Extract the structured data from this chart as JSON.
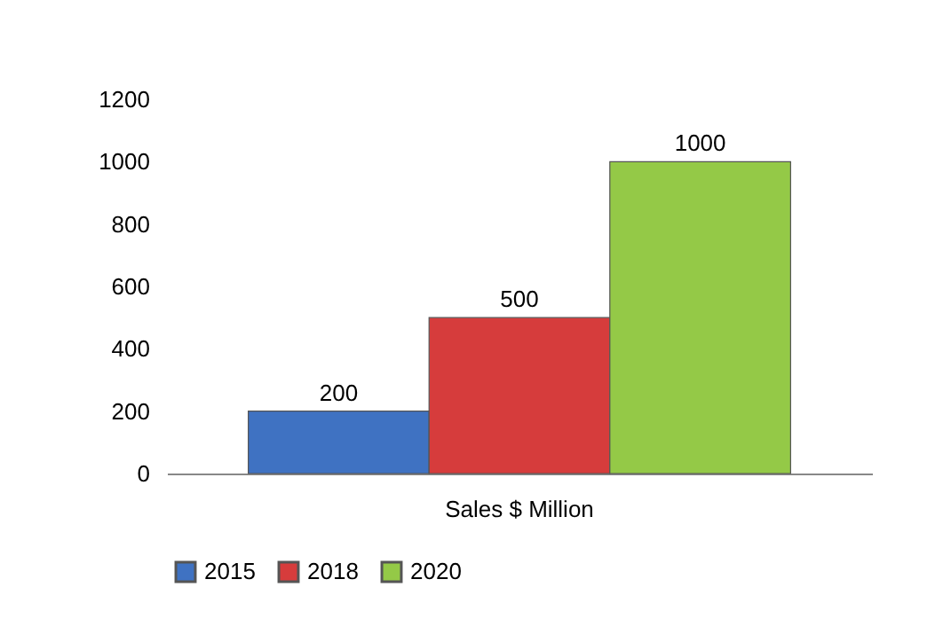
{
  "chart_data": {
    "type": "bar",
    "categories": [
      "Sales $ Million"
    ],
    "series": [
      {
        "name": "2015",
        "color": "#3f72c2",
        "values": [
          200
        ]
      },
      {
        "name": "2018",
        "color": "#d63c3c",
        "values": [
          500
        ]
      },
      {
        "name": "2020",
        "color": "#94c947",
        "values": [
          1000
        ]
      }
    ],
    "ylim": [
      0,
      1200
    ],
    "yticks": [
      0,
      200,
      400,
      600,
      800,
      1000,
      1200
    ],
    "grid": false,
    "legend": "bottom",
    "data_labels": true
  }
}
